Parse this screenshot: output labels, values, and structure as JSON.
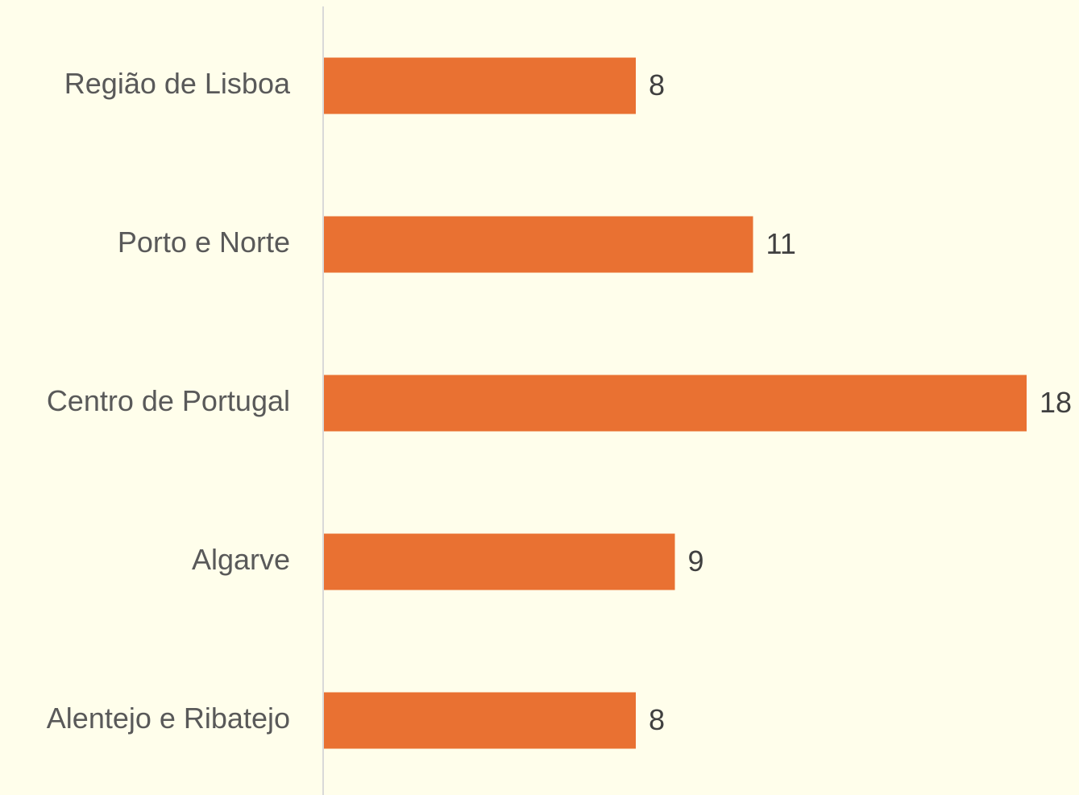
{
  "chart_data": {
    "type": "bar",
    "orientation": "horizontal",
    "categories": [
      "Região de Lisboa",
      "Porto e Norte",
      "Centro de Portugal",
      "Algarve",
      "Alentejo e Ribatejo"
    ],
    "values": [
      8,
      11,
      18,
      9,
      8
    ],
    "color": "#e97132",
    "xlim": [
      0,
      18
    ]
  }
}
